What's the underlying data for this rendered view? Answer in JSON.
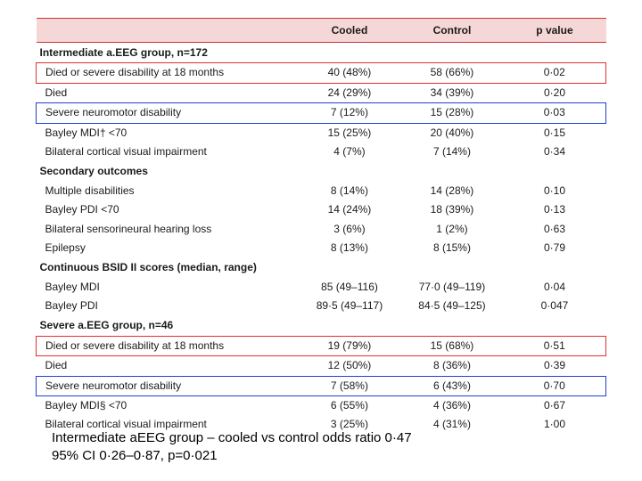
{
  "colors": {
    "header_bg": "#f6d7d7",
    "rule": "#c33",
    "box_red": "#e03030",
    "box_blue": "#2040d0",
    "text": "#1a1a1a",
    "background": "#ffffff"
  },
  "typography": {
    "body_fontsize_pt": 12,
    "caption_fontsize_pt": 15,
    "font_family": "Arial"
  },
  "column_widths_pct": [
    46,
    18,
    18,
    18
  ],
  "columns": [
    "",
    "Cooled",
    "Control",
    "p value"
  ],
  "sections": [
    {
      "title": "Intermediate a.EEG group, n=172",
      "rows": [
        {
          "label": "Died or severe disability at 18 months",
          "cooled": "40 (48%)",
          "control": "58 (66%)",
          "p": "0·02",
          "highlight": "red"
        },
        {
          "label": "Died",
          "cooled": "24 (29%)",
          "control": "34 (39%)",
          "p": "0·20"
        },
        {
          "label": "Severe neuromotor disability",
          "cooled": "7 (12%)",
          "control": "15 (28%)",
          "p": "0·03",
          "highlight": "blue"
        },
        {
          "label": "Bayley MDI† <70",
          "cooled": "15 (25%)",
          "control": "20 (40%)",
          "p": "0·15"
        },
        {
          "label": "Bilateral cortical visual impairment",
          "cooled": "4 (7%)",
          "control": "7 (14%)",
          "p": "0·34"
        }
      ]
    },
    {
      "title": "Secondary outcomes",
      "rows": [
        {
          "label": "Multiple disabilities",
          "cooled": "8 (14%)",
          "control": "14 (28%)",
          "p": "0·10"
        },
        {
          "label": "Bayley PDI <70",
          "cooled": "14 (24%)",
          "control": "18 (39%)",
          "p": "0·13"
        },
        {
          "label": "Bilateral sensorineural hearing loss",
          "cooled": "3 (6%)",
          "control": "1 (2%)",
          "p": "0·63"
        },
        {
          "label": "Epilepsy",
          "cooled": "8 (13%)",
          "control": "8 (15%)",
          "p": "0·79"
        }
      ]
    },
    {
      "title": "Continuous BSID II scores (median, range)",
      "rows": [
        {
          "label": "Bayley MDI",
          "cooled": "85 (49–116)",
          "control": "77·0 (49–119)",
          "p": "0·04"
        },
        {
          "label": "Bayley PDI",
          "cooled": "89·5 (49–117)",
          "control": "84·5 (49–125)",
          "p": "0·047"
        }
      ]
    },
    {
      "title": "Severe a.EEG group, n=46",
      "rows": [
        {
          "label": "Died or severe disability at 18 months",
          "cooled": "19 (79%)",
          "control": "15 (68%)",
          "p": "0·51",
          "highlight": "red"
        },
        {
          "label": "Died",
          "cooled": "12 (50%)",
          "control": "8 (36%)",
          "p": "0·39"
        },
        {
          "label": "Severe neuromotor disability",
          "cooled": "7 (58%)",
          "control": "6 (43%)",
          "p": "0·70",
          "highlight": "blue"
        },
        {
          "label": "Bayley MDI§ <70",
          "cooled": "6 (55%)",
          "control": "4 (36%)",
          "p": "0·67"
        },
        {
          "label": "Bilateral cortical visual impairment",
          "cooled": "3 (25%)",
          "control": "4 (31%)",
          "p": "1·00"
        }
      ]
    }
  ],
  "caption": {
    "line1": "Intermediate aEEG group – cooled vs control odds ratio 0·47",
    "line2": "95% CI 0·26–0·87, p=0·021"
  }
}
